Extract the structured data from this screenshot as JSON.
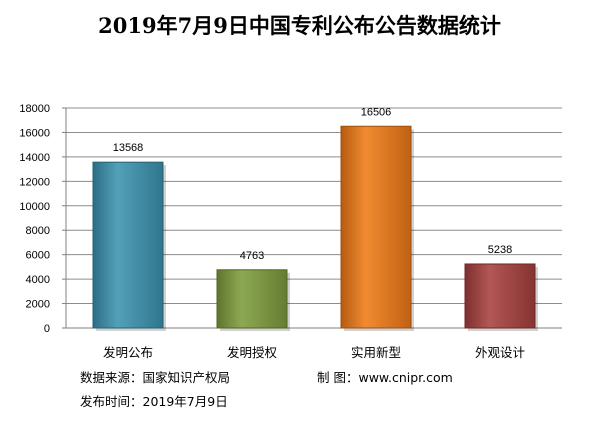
{
  "title": "2019年7月9日中国专利公布公告数据统计",
  "footer": {
    "source": "数据来源：国家知识产权局",
    "maker": "制 图：www.cnipr.com",
    "date": "发布时间：2019年7月9日"
  },
  "chart_data": {
    "type": "bar",
    "title": "2019年7月9日中国专利公布公告数据统计",
    "categories": [
      "发明公布",
      "发明授权",
      "实用新型",
      "外观设计"
    ],
    "values": [
      13568,
      4763,
      16506,
      5238
    ],
    "bar_colors": [
      "#3b93b0",
      "#7e9c3c",
      "#f07a16",
      "#a7403e"
    ],
    "ylim": [
      0,
      18000
    ],
    "yticks": [
      0,
      2000,
      4000,
      6000,
      8000,
      10000,
      12000,
      14000,
      16000,
      18000
    ],
    "grid": true,
    "legend": "none",
    "xlabel": "",
    "ylabel": ""
  }
}
